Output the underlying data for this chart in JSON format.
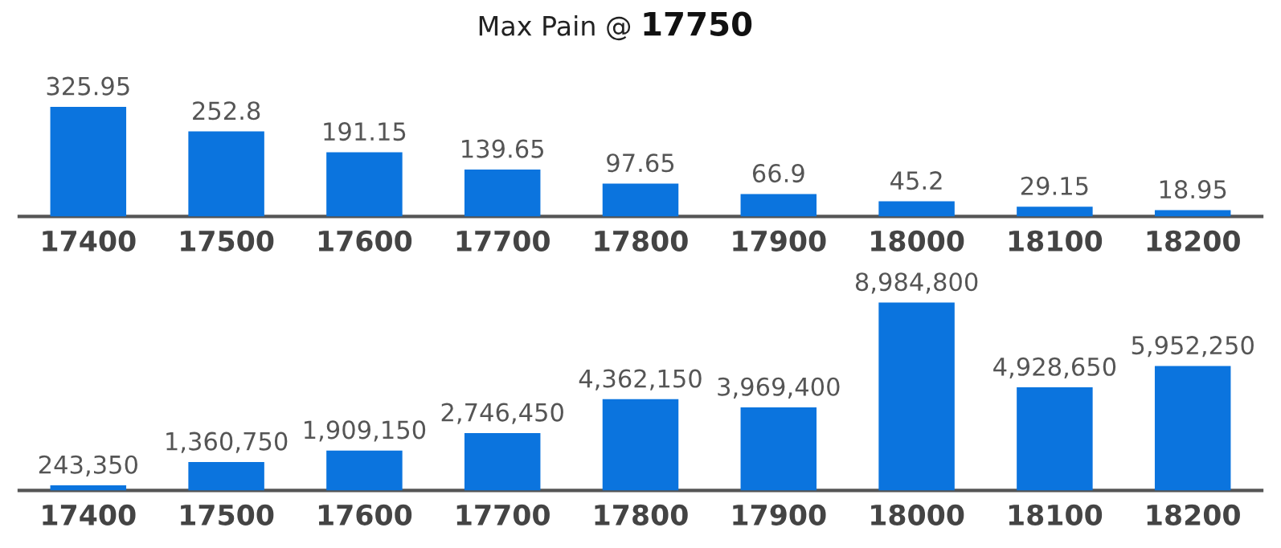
{
  "chart_data": [
    {
      "type": "bar",
      "title": "Max Pain @ 17750",
      "categories": [
        "17400",
        "17500",
        "17600",
        "17700",
        "17800",
        "17900",
        "18000",
        "18100",
        "18200"
      ],
      "values": [
        325.95,
        252.8,
        191.15,
        139.65,
        97.65,
        66.9,
        45.2,
        29.15,
        18.95
      ],
      "color": "#0b74de",
      "value_labels": [
        "325.95",
        "252.8",
        "191.15",
        "139.65",
        "97.65",
        "66.9",
        "45.2",
        "29.15",
        "18.95"
      ]
    },
    {
      "type": "bar",
      "categories": [
        "17400",
        "17500",
        "17600",
        "17700",
        "17800",
        "17900",
        "18000",
        "18100",
        "18200"
      ],
      "values": [
        243350,
        1360750,
        1909150,
        2746450,
        4362150,
        3969400,
        8984800,
        4928650,
        5952250
      ],
      "color": "#0b74de",
      "value_labels": [
        "243,350",
        "1,360,750",
        "1,909,150",
        "2,746,450",
        "4,362,150",
        "3,969,400",
        "8,984,800",
        "4,928,650",
        "5,952,250"
      ]
    }
  ]
}
